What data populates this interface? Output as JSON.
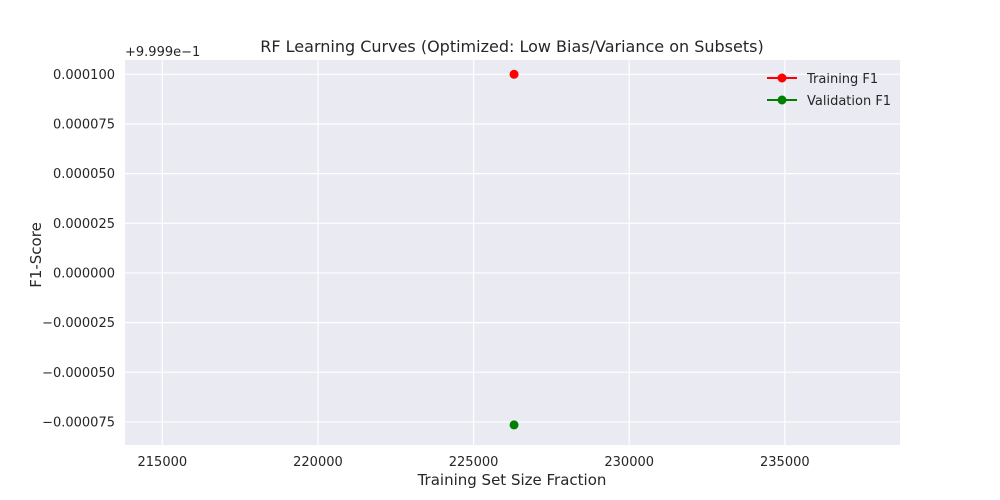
{
  "chart_data": {
    "type": "scatter",
    "title": "RF Learning Curves (Optimized: Low Bias/Variance on Subsets)",
    "xlabel": "Training Set Size Fraction",
    "ylabel": "F1-Score",
    "y_offset_text": "+9.999e−1",
    "xlim": [
      213800,
      238700
    ],
    "ylim": [
      -8.66e-05,
      0.0001072
    ],
    "x_ticks": [
      215000,
      220000,
      225000,
      230000,
      235000
    ],
    "x_tick_labels": [
      "215000",
      "220000",
      "225000",
      "230000",
      "235000"
    ],
    "y_ticks": [
      0.0001,
      7.5e-05,
      5e-05,
      2.5e-05,
      0.0,
      -2.5e-05,
      -5e-05,
      -7.5e-05
    ],
    "y_tick_labels": [
      "0.000100",
      "0.000075",
      "0.000050",
      "0.000025",
      "0.000000",
      "−0.000025",
      "−0.000050",
      "−0.000075"
    ],
    "grid": true,
    "legend_position": "top-right",
    "colors": {
      "plot_background": "#eaeaf2",
      "grid": "#ffffff"
    },
    "series": [
      {
        "name": "Training F1",
        "color": "#ff0000",
        "x": [
          226300
        ],
        "y": [
          0.0001
        ]
      },
      {
        "name": "Validation F1",
        "color": "#008000",
        "x": [
          226300
        ],
        "y": [
          -7.65e-05
        ]
      }
    ]
  }
}
